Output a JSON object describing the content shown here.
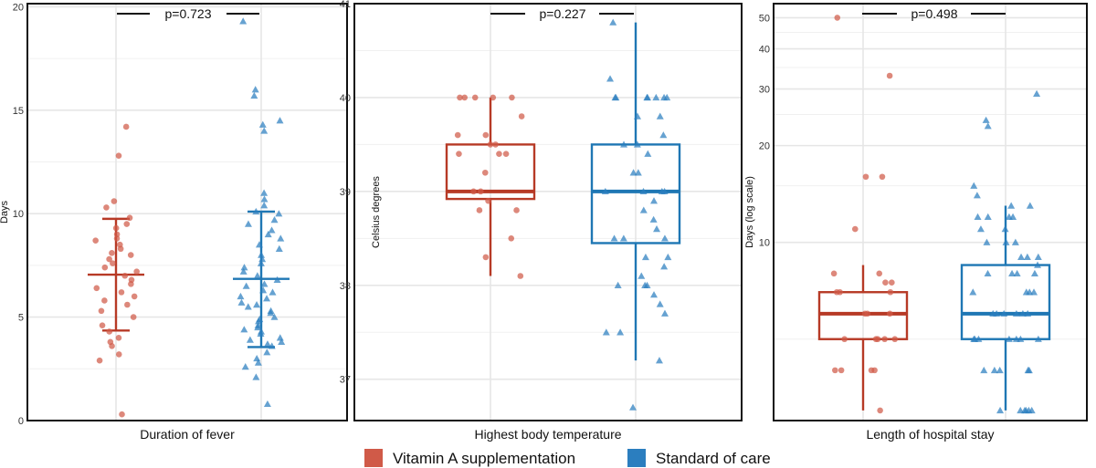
{
  "colors": {
    "vitamin_a": "#B73A26",
    "standard": "#1F77B4",
    "grid": "#E6E6E6"
  },
  "legend": [
    {
      "label": "Vitamin A supplementation",
      "color": "#D05A48"
    },
    {
      "label": "Standard of care",
      "color": "#2B7EBF"
    }
  ],
  "chart_data": [
    {
      "type": "scatter",
      "style": "jitter with mean ± SD error bars",
      "title": "",
      "xlabel": "Duration of fever",
      "ylabel": "Days",
      "ylim": [
        0,
        20
      ],
      "yticks": [
        0,
        5,
        10,
        15,
        20
      ],
      "p_value": "p=0.723",
      "summary": {
        "vitamin_a": {
          "mean": 7.05,
          "lower": 4.35,
          "upper": 9.75
        },
        "standard": {
          "mean": 6.85,
          "lower": 3.55,
          "upper": 10.1
        }
      },
      "series": [
        {
          "name": "Vitamin A supplementation",
          "marker": "circle",
          "values": [
            14.2,
            12.8,
            10.6,
            10.3,
            9.8,
            9.5,
            9.3,
            9.0,
            8.8,
            8.7,
            8.5,
            8.3,
            8.1,
            8.0,
            7.8,
            7.6,
            7.4,
            7.2,
            7.0,
            6.8,
            6.6,
            6.4,
            6.2,
            6.0,
            5.8,
            5.6,
            5.3,
            5.0,
            4.6,
            4.3,
            4.0,
            3.8,
            3.6,
            3.2,
            2.9,
            0.3
          ]
        },
        {
          "name": "Standard of care",
          "marker": "triangle",
          "values": [
            19.3,
            16.0,
            15.7,
            14.5,
            14.3,
            14.0,
            11.0,
            10.7,
            10.4,
            10.1,
            10.0,
            9.7,
            9.5,
            9.2,
            9.0,
            8.8,
            8.5,
            8.3,
            8.0,
            7.8,
            7.6,
            7.4,
            7.2,
            7.0,
            6.8,
            6.6,
            6.5,
            6.3,
            6.2,
            6.0,
            5.9,
            5.7,
            5.6,
            5.5,
            5.3,
            5.2,
            5.0,
            4.9,
            4.8,
            4.6,
            4.5,
            4.4,
            4.3,
            4.2,
            4.0,
            3.9,
            3.8,
            3.7,
            3.6,
            3.3,
            3.0,
            2.8,
            2.6,
            2.1,
            0.8
          ]
        }
      ]
    },
    {
      "type": "box",
      "title": "",
      "xlabel": "Highest body temperature",
      "ylabel": "Celsius degrees",
      "ylim": [
        36.6,
        41
      ],
      "yticks": [
        37,
        38,
        39,
        40,
        41
      ],
      "p_value": "p=0.227",
      "boxes": {
        "vitamin_a": {
          "whisker_low": 38.1,
          "q1": 38.92,
          "median": 39.0,
          "q3": 39.5,
          "whisker_high": 40.0
        },
        "standard": {
          "whisker_low": 37.2,
          "q1": 38.45,
          "median": 39.0,
          "q3": 39.5,
          "whisker_high": 40.8
        }
      },
      "series": [
        {
          "name": "Vitamin A supplementation",
          "marker": "circle",
          "values": [
            40.0,
            40.0,
            40.0,
            40.0,
            40.0,
            39.8,
            39.6,
            39.6,
            39.5,
            39.5,
            39.4,
            39.4,
            39.4,
            39.2,
            39.0,
            39.0,
            38.9,
            38.8,
            38.8,
            38.5,
            38.3,
            38.1
          ]
        },
        {
          "name": "Standard of care",
          "marker": "triangle",
          "values": [
            40.8,
            40.2,
            40.0,
            40.0,
            40.0,
            40.0,
            40.0,
            40.0,
            40.0,
            39.8,
            39.8,
            39.6,
            39.5,
            39.5,
            39.4,
            39.2,
            39.2,
            39.0,
            39.0,
            39.0,
            39.0,
            38.9,
            38.8,
            38.7,
            38.6,
            38.5,
            38.5,
            38.5,
            38.3,
            38.3,
            38.2,
            38.1,
            38.0,
            38.0,
            38.0,
            37.9,
            37.8,
            37.7,
            37.5,
            37.5,
            37.2,
            36.7
          ]
        }
      ]
    },
    {
      "type": "box",
      "title": "",
      "xlabel": "Length of hospital stay",
      "ylabel": "Days (log scale)",
      "yscale": "log",
      "ylim": [
        2.8,
        55
      ],
      "yticks": [
        10,
        20,
        30,
        40,
        50
      ],
      "p_value": "p=0.498",
      "boxes": {
        "vitamin_a": {
          "whisker_low": 3.0,
          "q1": 5.0,
          "median": 6.0,
          "q3": 7.0,
          "whisker_high": 8.5
        },
        "standard": {
          "whisker_low": 3.0,
          "q1": 5.0,
          "median": 6.0,
          "q3": 8.5,
          "whisker_high": 13.0
        }
      },
      "series": [
        {
          "name": "Vitamin A supplementation",
          "marker": "circle",
          "values": [
            50,
            33,
            16,
            16,
            11,
            8,
            8,
            7.5,
            7.5,
            7,
            7,
            7,
            6,
            6,
            6,
            5,
            5,
            5,
            5,
            5,
            4,
            4,
            4,
            4,
            3
          ]
        },
        {
          "name": "Standard of care",
          "marker": "triangle",
          "values": [
            29,
            24,
            23,
            15,
            14,
            13,
            13,
            12,
            12,
            12,
            12,
            11,
            11,
            10,
            10,
            10,
            9,
            9,
            9,
            8.5,
            8,
            8,
            8,
            8,
            7,
            7,
            7,
            7,
            6,
            6,
            6,
            6,
            6,
            6,
            5,
            5,
            5,
            5,
            5,
            5,
            5,
            4,
            4,
            4,
            4,
            4,
            3,
            3,
            3,
            3,
            3,
            3
          ]
        }
      ]
    }
  ]
}
